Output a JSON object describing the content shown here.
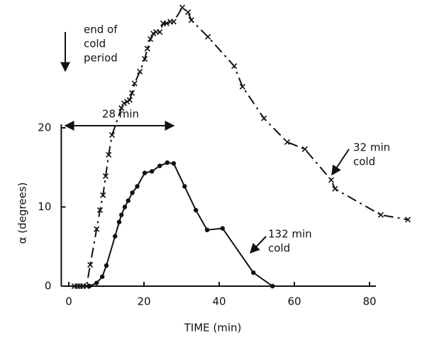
{
  "chart_data": {
    "type": "line",
    "x_label": "TIME (min)",
    "y_label": "α (degrees)",
    "xlim": [
      -2,
      95
    ],
    "ylim": [
      0,
      36
    ],
    "xticks": [
      0,
      20,
      40,
      60,
      80
    ],
    "yticks": [
      0,
      10,
      20
    ],
    "series": [
      {
        "name": "32 min cold",
        "color": "#111111",
        "marker": "x",
        "dashed": true,
        "x": [
          1.5,
          2.3,
          3.0,
          3.8,
          4.7,
          5.7,
          7.4,
          8.3,
          9.1,
          9.8,
          10.6,
          11.5,
          14.0,
          14.7,
          15.5,
          16.2,
          16.8,
          17.5,
          18.9,
          20.2,
          20.9,
          21.7,
          22.5,
          23.2,
          24.2,
          25.1,
          26.0,
          27.0,
          27.9,
          30.2,
          31.7,
          32.6,
          37.0,
          44.0,
          46.2,
          51.9,
          58.1,
          62.8,
          69.8,
          70.8,
          83.0,
          90.2
        ],
        "values": [
          0,
          0,
          0,
          0,
          0,
          2.7,
          7.2,
          9.6,
          11.5,
          13.9,
          16.6,
          19.1,
          22.5,
          23.1,
          23.3,
          23.5,
          24.4,
          25.6,
          27.1,
          28.7,
          30.0,
          31.2,
          31.9,
          32.1,
          32.1,
          33.2,
          33.2,
          33.4,
          33.4,
          35.2,
          34.6,
          33.6,
          31.5,
          27.8,
          25.2,
          21.2,
          18.2,
          17.3,
          13.4,
          12.3,
          9.0,
          8.4
        ]
      },
      {
        "name": "132 min cold",
        "color": "#111111",
        "marker": "dot",
        "dashed": false,
        "x": [
          5.5,
          7.4,
          8.9,
          10.0,
          12.3,
          13.4,
          14.0,
          14.9,
          15.8,
          16.9,
          18.2,
          20.2,
          22.1,
          24.2,
          26.2,
          27.9,
          30.8,
          33.8,
          36.8,
          40.9,
          49.1,
          54.2
        ],
        "values": [
          0,
          0.4,
          1.2,
          2.6,
          6.3,
          8.1,
          9.0,
          10.0,
          10.8,
          11.8,
          12.6,
          14.3,
          14.5,
          15.2,
          15.6,
          15.5,
          12.6,
          9.6,
          7.1,
          7.3,
          1.7,
          0
        ]
      }
    ],
    "annotations": {
      "cold_period": [
        "end of",
        "cold",
        "period"
      ],
      "span": "28 min",
      "label_32": [
        "32 min",
        "cold"
      ],
      "label_132": [
        "132 min",
        "cold"
      ]
    }
  }
}
